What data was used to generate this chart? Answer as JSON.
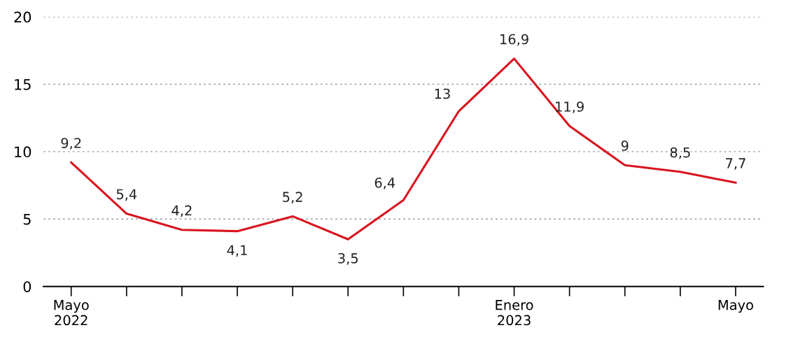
{
  "chart_data": {
    "type": "line",
    "categories": [
      "Mayo\n2022",
      null,
      null,
      null,
      null,
      null,
      null,
      null,
      "Enero\n2023",
      null,
      null,
      null,
      "Mayo"
    ],
    "series": [
      {
        "color": "#d9141e",
        "values": [
          9.2,
          5.4,
          4.2,
          4.1,
          5.2,
          3.5,
          6.4,
          13,
          16.9,
          11.9,
          9,
          8.5,
          7.7
        ],
        "value_labels": [
          "9,2",
          "5,4",
          "4,2",
          "4,1",
          "5,2",
          "3,5",
          "6,4",
          "13",
          "16,9",
          "11,9",
          "9",
          "8,5",
          "7,7"
        ]
      }
    ],
    "ylim": [
      0,
      20
    ],
    "yticks": [
      0,
      5,
      10,
      15,
      20
    ],
    "grid": "y",
    "marker": "none",
    "line_style": "solid"
  }
}
